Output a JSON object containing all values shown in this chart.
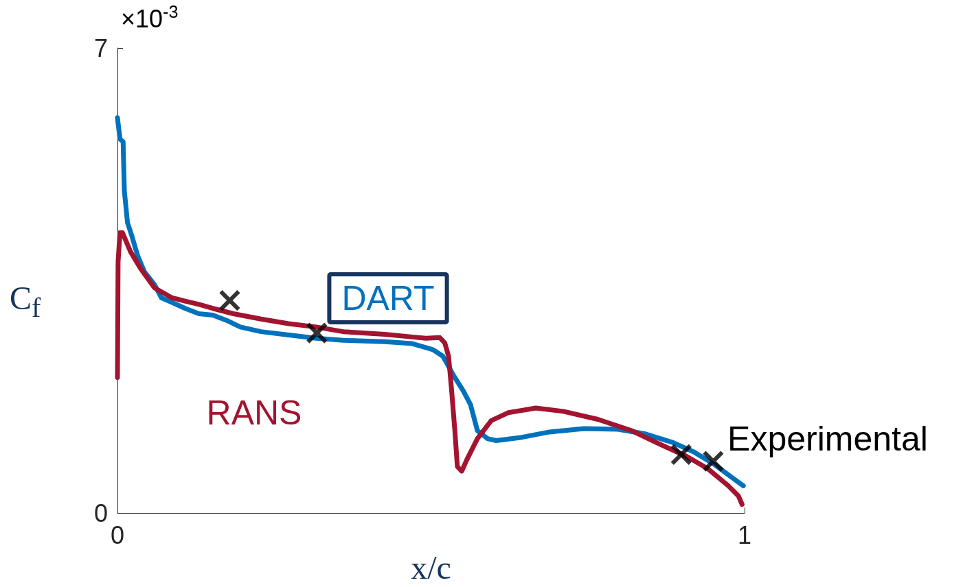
{
  "chart_data": {
    "type": "line",
    "xlabel": "x/c",
    "ylabel": "C$_{f}$",
    "annotations": [
      "×10$^{-3}$"
    ],
    "xlim": [
      0,
      1
    ],
    "xticks": [
      0,
      1
    ],
    "ylim": [
      0,
      7
    ],
    "yticks": [
      0,
      7
    ],
    "grid": false,
    "legend": false,
    "line_style": "solid",
    "series": [
      {
        "name": "DART",
        "color": "#0072bd",
        "marker": "none",
        "x": [
          0,
          0.004,
          0.009,
          0.011,
          0.016,
          0.023,
          0.032,
          0.043,
          0.059,
          0.07,
          0.087,
          0.108,
          0.13,
          0.152,
          0.174,
          0.196,
          0.229,
          0.273,
          0.317,
          0.36,
          0.426,
          0.47,
          0.503,
          0.519,
          0.536,
          0.552,
          0.563,
          0.574,
          0.59,
          0.604,
          0.645,
          0.689,
          0.744,
          0.798,
          0.842,
          0.886,
          0.919,
          0.952,
          0.979,
          0.998
        ],
        "values": [
          5.95,
          5.63,
          5.59,
          4.85,
          4.37,
          4.17,
          3.88,
          3.63,
          3.44,
          3.24,
          3.17,
          3.08,
          3.0,
          2.98,
          2.9,
          2.8,
          2.73,
          2.68,
          2.63,
          2.6,
          2.58,
          2.55,
          2.46,
          2.36,
          2.07,
          1.83,
          1.63,
          1.24,
          1.12,
          1.09,
          1.14,
          1.22,
          1.27,
          1.26,
          1.19,
          1.06,
          0.92,
          0.73,
          0.54,
          0.41
        ]
      },
      {
        "name": "RANS",
        "color": "#a2142f",
        "marker": "none",
        "x": [
          0,
          0.001,
          0.004,
          0.008,
          0.021,
          0.037,
          0.059,
          0.087,
          0.108,
          0.13,
          0.152,
          0.185,
          0.229,
          0.273,
          0.317,
          0.36,
          0.426,
          0.47,
          0.492,
          0.514,
          0.522,
          0.528,
          0.533,
          0.538,
          0.542,
          0.549,
          0.557,
          0.574,
          0.596,
          0.623,
          0.667,
          0.711,
          0.766,
          0.82,
          0.864,
          0.908,
          0.941,
          0.974,
          0.99,
          0.996
        ],
        "values": [
          2.04,
          3.78,
          4.22,
          4.22,
          3.93,
          3.68,
          3.39,
          3.24,
          3.19,
          3.14,
          3.08,
          3.0,
          2.92,
          2.85,
          2.8,
          2.73,
          2.69,
          2.65,
          2.63,
          2.64,
          2.56,
          2.36,
          1.83,
          1.24,
          0.7,
          0.63,
          0.8,
          1.12,
          1.39,
          1.51,
          1.58,
          1.53,
          1.41,
          1.24,
          1.04,
          0.85,
          0.67,
          0.41,
          0.26,
          0.13
        ]
      },
      {
        "name": "Experimental",
        "type": "scatter",
        "color": "#000000",
        "marker": "cross",
        "x": [
          0.179,
          0.318,
          0.899,
          0.95
        ],
        "values": [
          3.2,
          2.71,
          0.88,
          0.78
        ]
      }
    ]
  }
}
